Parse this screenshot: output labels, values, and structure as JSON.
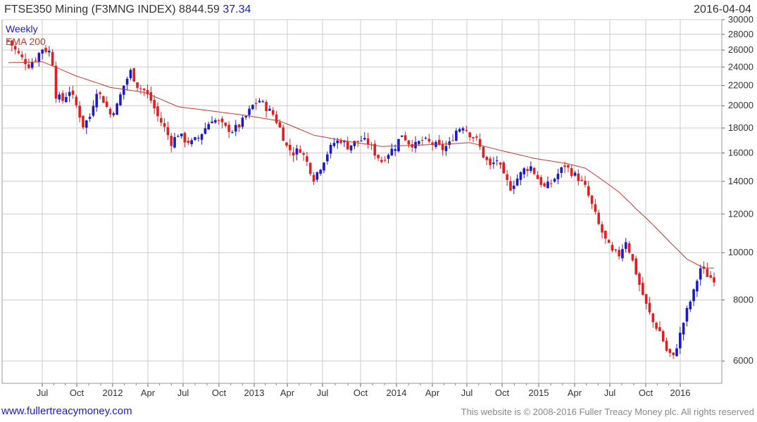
{
  "header": {
    "title_prefix": "FTSE350 Mining (F3MNG INDEX) 8844.59",
    "change": "37.34",
    "date": "2016-04-04"
  },
  "legend": {
    "weekly": "Weekly",
    "ema": "EMA 200"
  },
  "footer": {
    "site": "www.fullertreacymoney.com",
    "notice": "This website is © 2008-2016 Fuller Treacy Money plc. All rights reserved"
  },
  "colors": {
    "up": "#1a1ac8",
    "down": "#e02020",
    "ema": "#c0392b",
    "grid": "#cccccc"
  },
  "chart_data": {
    "type": "candlestick",
    "scale": "log",
    "frequency": "weekly",
    "ylim": [
      5400,
      30000
    ],
    "grid": true,
    "y_ticks": [
      6000,
      8000,
      10000,
      12000,
      14000,
      16000,
      18000,
      20000,
      22000,
      24000,
      26000,
      28000,
      30000
    ],
    "x_ticks": [
      "Jul",
      "Oct",
      "2012",
      "Apr",
      "Jul",
      "Oct",
      "2013",
      "Apr",
      "Jul",
      "Oct",
      "2014",
      "Apr",
      "Jul",
      "Oct",
      "2015",
      "Apr",
      "Jul",
      "Oct",
      "2016"
    ],
    "price_anchors": [
      [
        0,
        27200
      ],
      [
        2,
        26000
      ],
      [
        4,
        25000
      ],
      [
        6,
        24200
      ],
      [
        8,
        25000
      ],
      [
        10,
        26200
      ],
      [
        12,
        25800
      ],
      [
        13,
        24500
      ],
      [
        14,
        21000
      ],
      [
        16,
        20500
      ],
      [
        18,
        21500
      ],
      [
        20,
        20000
      ],
      [
        22,
        18200
      ],
      [
        24,
        19000
      ],
      [
        26,
        21500
      ],
      [
        28,
        20500
      ],
      [
        30,
        19200
      ],
      [
        32,
        20000
      ],
      [
        34,
        22000
      ],
      [
        36,
        23500
      ],
      [
        38,
        22000
      ],
      [
        40,
        21500
      ],
      [
        42,
        20500
      ],
      [
        44,
        19000
      ],
      [
        46,
        18000
      ],
      [
        48,
        16800
      ],
      [
        50,
        17500
      ],
      [
        52,
        17000
      ],
      [
        54,
        16800
      ],
      [
        56,
        17200
      ],
      [
        58,
        18000
      ],
      [
        60,
        18800
      ],
      [
        62,
        18500
      ],
      [
        64,
        18000
      ],
      [
        66,
        17800
      ],
      [
        68,
        18200
      ],
      [
        70,
        19000
      ],
      [
        72,
        20000
      ],
      [
        74,
        20500
      ],
      [
        76,
        19800
      ],
      [
        78,
        19200
      ],
      [
        80,
        18000
      ],
      [
        82,
        16500
      ],
      [
        84,
        16000
      ],
      [
        86,
        16300
      ],
      [
        88,
        15300
      ],
      [
        90,
        14200
      ],
      [
        92,
        15000
      ],
      [
        94,
        16000
      ],
      [
        96,
        16800
      ],
      [
        98,
        17000
      ],
      [
        100,
        16500
      ],
      [
        102,
        16800
      ],
      [
        104,
        17000
      ],
      [
        106,
        16800
      ],
      [
        108,
        16000
      ],
      [
        110,
        15400
      ],
      [
        112,
        16000
      ],
      [
        114,
        16500
      ],
      [
        116,
        17500
      ],
      [
        118,
        16800
      ],
      [
        120,
        16600
      ],
      [
        122,
        17000
      ],
      [
        124,
        16800
      ],
      [
        126,
        16600
      ],
      [
        128,
        16300
      ],
      [
        130,
        16700
      ],
      [
        132,
        17800
      ],
      [
        134,
        18200
      ],
      [
        136,
        17500
      ],
      [
        138,
        17000
      ],
      [
        140,
        15800
      ],
      [
        142,
        15000
      ],
      [
        144,
        15500
      ],
      [
        146,
        14300
      ],
      [
        148,
        13600
      ],
      [
        150,
        14200
      ],
      [
        152,
        14800
      ],
      [
        154,
        15000
      ],
      [
        156,
        14200
      ],
      [
        158,
        13600
      ],
      [
        160,
        13900
      ],
      [
        162,
        14500
      ],
      [
        164,
        15100
      ],
      [
        166,
        14600
      ],
      [
        168,
        14200
      ],
      [
        170,
        13600
      ],
      [
        172,
        12500
      ],
      [
        174,
        11400
      ],
      [
        176,
        10600
      ],
      [
        178,
        10000
      ],
      [
        180,
        9900
      ],
      [
        182,
        10600
      ],
      [
        184,
        9600
      ],
      [
        186,
        8600
      ],
      [
        188,
        7800
      ],
      [
        190,
        7200
      ],
      [
        192,
        6900
      ],
      [
        194,
        6300
      ],
      [
        196,
        6100
      ],
      [
        198,
        6800
      ],
      [
        200,
        7600
      ],
      [
        202,
        8300
      ],
      [
        204,
        9300
      ],
      [
        206,
        9000
      ],
      [
        207,
        8900
      ],
      [
        208,
        8845
      ]
    ],
    "ema_anchors": [
      [
        0,
        24500
      ],
      [
        10,
        24600
      ],
      [
        20,
        23000
      ],
      [
        30,
        21800
      ],
      [
        40,
        21300
      ],
      [
        50,
        19900
      ],
      [
        60,
        19500
      ],
      [
        70,
        19100
      ],
      [
        80,
        18600
      ],
      [
        90,
        17400
      ],
      [
        100,
        16900
      ],
      [
        110,
        16500
      ],
      [
        120,
        16600
      ],
      [
        130,
        16700
      ],
      [
        136,
        16800
      ],
      [
        145,
        16200
      ],
      [
        155,
        15600
      ],
      [
        165,
        15200
      ],
      [
        170,
        14900
      ],
      [
        175,
        14100
      ],
      [
        180,
        13300
      ],
      [
        185,
        12300
      ],
      [
        190,
        11400
      ],
      [
        195,
        10500
      ],
      [
        200,
        9700
      ],
      [
        205,
        9300
      ],
      [
        208,
        9300
      ]
    ]
  }
}
